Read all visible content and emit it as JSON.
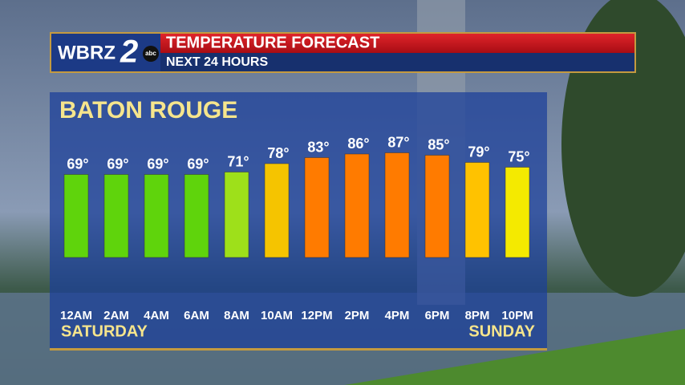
{
  "chart_data": {
    "type": "bar",
    "logo": {
      "station": "WBRZ",
      "channel": "2",
      "network": "abc"
    },
    "title": "TEMPERATURE FORECAST",
    "subtitle": "NEXT 24 HOURS",
    "location": "BATON ROUGE",
    "categories": [
      "12AM",
      "2AM",
      "4AM",
      "6AM",
      "8AM",
      "10AM",
      "12PM",
      "2PM",
      "4PM",
      "6PM",
      "8PM",
      "10PM"
    ],
    "values": [
      69,
      69,
      69,
      69,
      71,
      78,
      83,
      86,
      87,
      85,
      79,
      75
    ],
    "value_labels": [
      "69°",
      "69°",
      "69°",
      "69°",
      "71°",
      "78°",
      "83°",
      "86°",
      "87°",
      "85°",
      "79°",
      "75°"
    ],
    "colors": [
      "#5fd40c",
      "#5fd40c",
      "#5fd40c",
      "#5fd40c",
      "#9ee01a",
      "#f5c400",
      "#ff7b00",
      "#ff7b00",
      "#ff7b00",
      "#ff7b00",
      "#ffc200",
      "#f4ea00"
    ],
    "day_labels": [
      "SATURDAY",
      "SUNDAY"
    ],
    "ylim": [
      -40,
      100
    ]
  }
}
